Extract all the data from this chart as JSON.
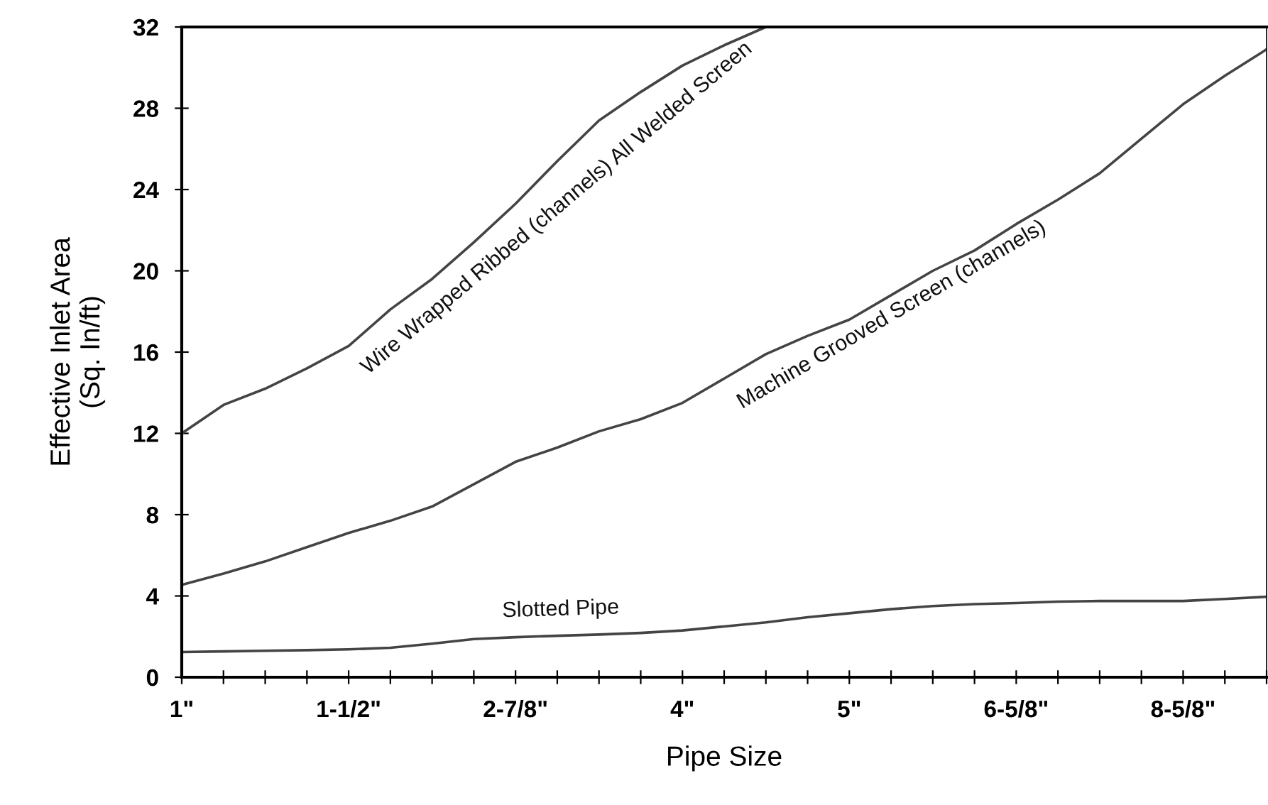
{
  "chart_data": {
    "type": "line",
    "xlabel": "Pipe Size",
    "ylabel": "Effective Inlet Area\n(Sq. In/ft)",
    "categories": [
      "1\"",
      null,
      null,
      null,
      "1-1/2\"",
      null,
      null,
      null,
      "2-7/8\"",
      null,
      null,
      null,
      "4\"",
      null,
      null,
      null,
      "5\"",
      null,
      null,
      null,
      "6-5/8\"",
      null,
      null,
      null,
      "8-5/8\"",
      null,
      null
    ],
    "ylim": [
      0,
      32
    ],
    "yticks": [
      0,
      4,
      8,
      12,
      16,
      20,
      24,
      28,
      32
    ],
    "grid": false,
    "legend": false,
    "marker": "none",
    "line_style": "solid",
    "series": [
      {
        "name": "Wire Wrapped Ribbed (channels) All Welded Screen",
        "color": "#444444",
        "values": [
          12.0,
          13.4,
          14.2,
          15.2,
          16.3,
          18.1,
          19.6,
          21.4,
          23.3,
          25.4,
          27.4,
          28.8,
          30.1,
          31.1,
          32.0,
          null,
          null,
          null,
          null,
          null,
          null,
          null,
          null,
          null,
          null,
          null,
          null
        ]
      },
      {
        "name": "Machine Grooved Screen (channels)",
        "color": "#444444",
        "values": [
          4.55,
          5.1,
          5.7,
          6.4,
          7.1,
          7.7,
          8.4,
          9.5,
          10.6,
          11.3,
          12.1,
          12.7,
          13.5,
          14.7,
          15.9,
          16.8,
          17.6,
          18.8,
          20.0,
          21.0,
          22.3,
          23.5,
          24.8,
          26.5,
          28.2,
          29.6,
          30.9
        ]
      },
      {
        "name": "Slotted Pipe",
        "color": "#444444",
        "values": [
          1.24,
          1.27,
          1.3,
          1.33,
          1.37,
          1.45,
          1.65,
          1.88,
          1.97,
          2.04,
          2.1,
          2.18,
          2.3,
          2.5,
          2.7,
          2.95,
          3.15,
          3.35,
          3.5,
          3.6,
          3.65,
          3.72,
          3.75,
          3.75,
          3.75,
          3.85,
          3.96
        ]
      }
    ]
  }
}
